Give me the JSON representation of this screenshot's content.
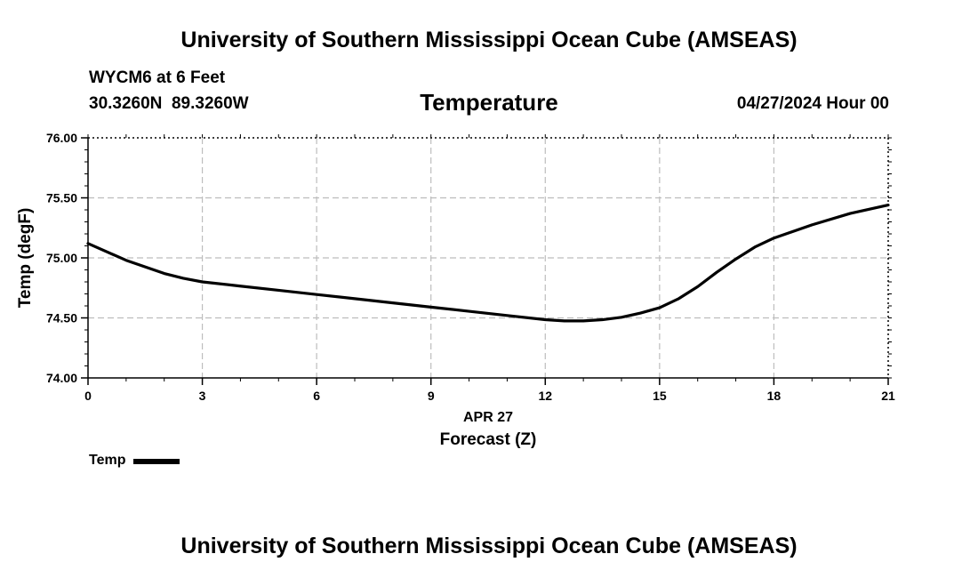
{
  "header": {
    "title": "University of Southern Mississippi Ocean Cube (AMSEAS)",
    "station": "WYCM6 at 6 Feet",
    "coordinates": "30.3260N  89.3260W",
    "variable": "Temperature",
    "datetime": "04/27/2024 Hour 00"
  },
  "footer": {
    "title": "University of Southern Mississippi Ocean Cube (AMSEAS)"
  },
  "legend": {
    "label": "Temp"
  },
  "chart_data": {
    "type": "line",
    "title": "Temperature",
    "xlabel": "Forecast (Z)",
    "xlabel_date": "APR 27",
    "ylabel": "Temp (degF)",
    "xlim": [
      0,
      21
    ],
    "ylim": [
      74.0,
      76.0
    ],
    "x_ticks": [
      0,
      3,
      6,
      9,
      12,
      15,
      18,
      21
    ],
    "y_ticks": [
      74.0,
      74.5,
      75.0,
      75.5,
      76.0
    ],
    "y_tick_labels": [
      "74.00",
      "74.50",
      "75.00",
      "75.50",
      "76.00"
    ],
    "grid": true,
    "series": [
      {
        "name": "Temp",
        "color": "#000000",
        "x": [
          0,
          1,
          2,
          2.5,
          3,
          4,
          5,
          6,
          7,
          8,
          9,
          10,
          11,
          12,
          12.5,
          13,
          13.5,
          14,
          14.5,
          15,
          15.5,
          16,
          16.5,
          17,
          17.5,
          18,
          19,
          20,
          21
        ],
        "y": [
          75.12,
          74.98,
          74.87,
          74.83,
          74.8,
          74.765,
          74.73,
          74.695,
          74.66,
          74.625,
          74.59,
          74.555,
          74.52,
          74.485,
          74.475,
          74.475,
          74.485,
          74.505,
          74.54,
          74.585,
          74.66,
          74.76,
          74.88,
          74.99,
          75.09,
          75.165,
          75.275,
          75.37,
          75.44
        ]
      }
    ]
  }
}
